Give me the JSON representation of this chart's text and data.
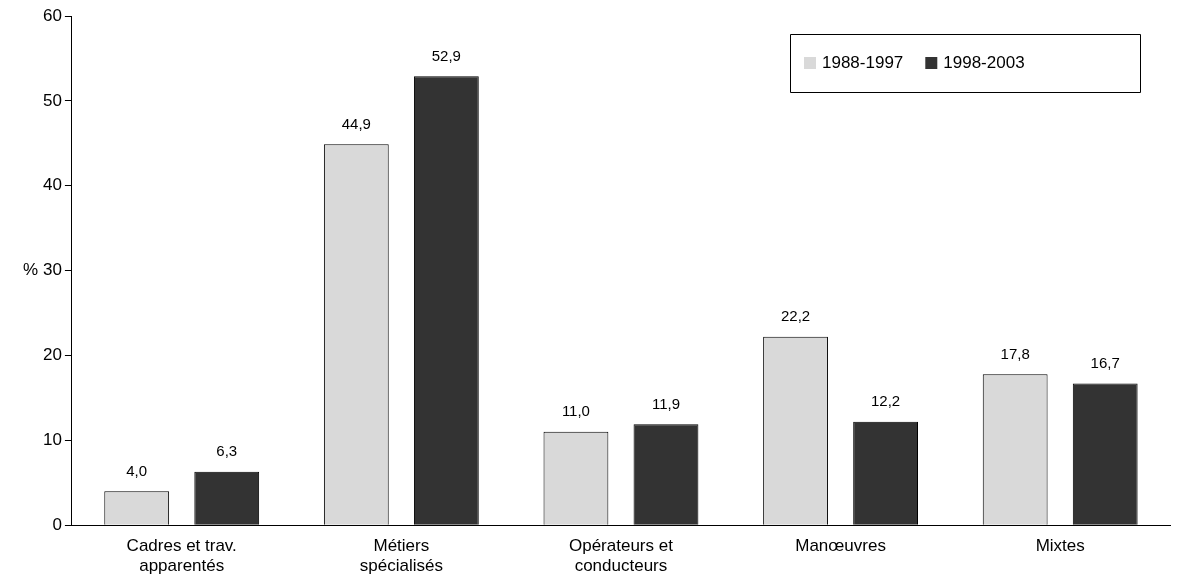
{
  "chart_data": {
    "type": "bar",
    "ylabel": "%",
    "categories": [
      "Cadres et trav.\napparentés",
      "Métiers\nspécialisés",
      "Opérateurs et\nconducteurs",
      "Manœuvres",
      "Mixtes"
    ],
    "series": [
      {
        "name": "1988-1997",
        "color": "#d9d9d9",
        "values": [
          4.0,
          44.9,
          11.0,
          22.2,
          17.8
        ],
        "value_labels": [
          "4,0",
          "44,9",
          "11,0",
          "22,2",
          "17,8"
        ]
      },
      {
        "name": "1998-2003",
        "color": "#333333",
        "values": [
          6.3,
          52.9,
          11.9,
          12.2,
          16.7
        ],
        "value_labels": [
          "6,3",
          "52,9",
          "11,9",
          "12,2",
          "16,7"
        ]
      }
    ],
    "ylim": [
      0,
      60
    ],
    "yticks": [
      0,
      10,
      20,
      30,
      40,
      50,
      60
    ],
    "grid": false,
    "legend": "top right"
  }
}
